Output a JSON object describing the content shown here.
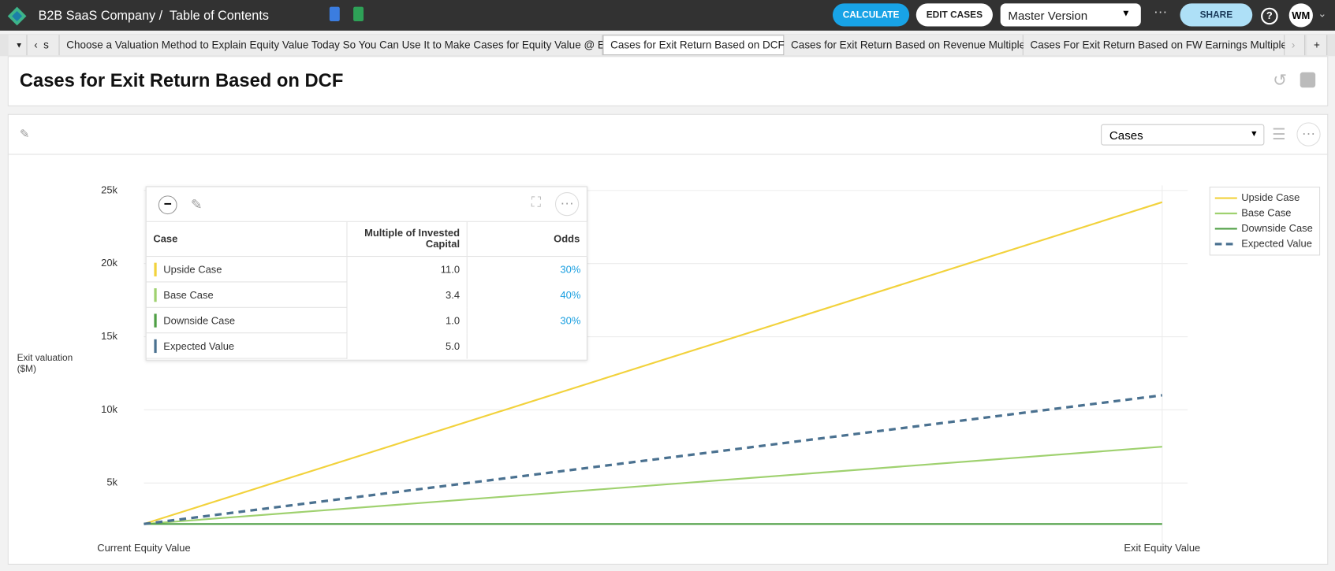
{
  "header": {
    "company": "B2B SaaS Company /",
    "breadcrumb": "Table of Contents",
    "calculate": "CALCULATE",
    "edit_cases": "EDIT CASES",
    "version": "Master Version",
    "share": "SHARE",
    "avatar": "WM"
  },
  "tabs": [
    "s",
    "Choose a Valuation Method to Explain Equity Value Today So You Can Use It to Make Cases for Equity Value @ Exit",
    "Cases for Exit Return Based on DCF",
    "Cases for Exit Return Based on Revenue Multiple",
    "Cases For Exit Return Based on FW Earnings Multiple"
  ],
  "page_title": "Cases for Exit Return Based on DCF",
  "view_select": "Cases",
  "chart_data": {
    "type": "line",
    "y_label": "Exit valuation ($M)",
    "categories": [
      "Current Equity Value",
      "Exit Equity Value"
    ],
    "series": [
      {
        "name": "Upside Case",
        "color": "#f2d23c",
        "values": [
          2200,
          24200
        ]
      },
      {
        "name": "Base Case",
        "color": "#9fd16f",
        "values": [
          2200,
          7480
        ]
      },
      {
        "name": "Downside Case",
        "color": "#4f9f45",
        "values": [
          2200,
          2200
        ]
      },
      {
        "name": "Expected Value",
        "color": "#4a7190",
        "dashed": true,
        "values": [
          2200,
          11000
        ]
      }
    ],
    "ylim": [
      0,
      25000
    ],
    "yticks": [
      {
        "value": 5000,
        "label": "5k"
      },
      {
        "value": 10000,
        "label": "10k"
      },
      {
        "value": 15000,
        "label": "15k"
      },
      {
        "value": 20000,
        "label": "20k"
      },
      {
        "value": 25000,
        "label": "25k"
      }
    ],
    "grid": true,
    "legend": "top-right"
  },
  "table": {
    "columns": [
      "Case",
      "Multiple of Invested Capital",
      "Odds"
    ],
    "rows": [
      [
        "Upside Case",
        "11.0",
        "30%"
      ],
      [
        "Base Case",
        "3.4",
        "40%"
      ],
      [
        "Downside Case",
        "1.0",
        "30%"
      ],
      [
        "Expected Value",
        "5.0"
      ]
    ]
  }
}
